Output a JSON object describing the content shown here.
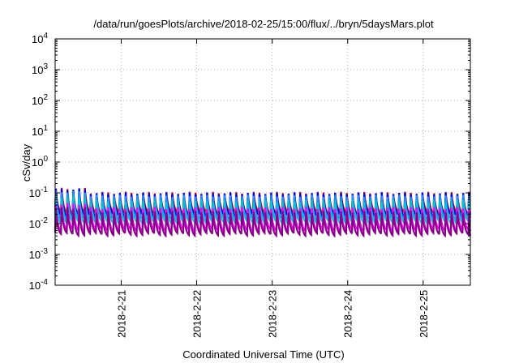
{
  "chart_data": {
    "type": "line",
    "title": "/data/run/goesPlots/archive/2018-02-25/15:00/flux/../bryn/5daysMars.plot",
    "xlabel": "Coordinated Universal Time (UTC)",
    "ylabel": "cSv/day",
    "yscale": "log",
    "ylim": [
      0.0001,
      10000
    ],
    "y_ticks": [
      {
        "base": "10",
        "exp": "-4",
        "value": 0.0001
      },
      {
        "base": "10",
        "exp": "-3",
        "value": 0.001
      },
      {
        "base": "10",
        "exp": "-2",
        "value": 0.01
      },
      {
        "base": "10",
        "exp": "-1",
        "value": 0.1
      },
      {
        "base": "10",
        "exp": "0",
        "value": 1
      },
      {
        "base": "10",
        "exp": "1",
        "value": 10
      },
      {
        "base": "10",
        "exp": "2",
        "value": 100
      },
      {
        "base": "10",
        "exp": "3",
        "value": 1000
      },
      {
        "base": "10",
        "exp": "4",
        "value": 10000
      }
    ],
    "xlim": [
      "2018-02-20T03:00",
      "2018-02-25T15:00"
    ],
    "x_ticks": [
      {
        "label": "2018-2-21",
        "value": "2018-02-21T00:00"
      },
      {
        "label": "2018-2-22",
        "value": "2018-02-22T00:00"
      },
      {
        "label": "2018-2-23",
        "value": "2018-02-23T00:00"
      },
      {
        "label": "2018-2-24",
        "value": "2018-02-24T00:00"
      },
      {
        "label": "2018-2-25",
        "value": "2018-02-25T00:00"
      }
    ],
    "grid": true,
    "legend": "none",
    "sawtooth_period_hours": 1.85,
    "series": [
      {
        "color": "#cc0000",
        "peak": 0.1,
        "trough": 0.022
      },
      {
        "color": "#0000ff",
        "peak": 0.095,
        "trough": 0.018
      },
      {
        "color": "#1e90ff",
        "peak": 0.08,
        "trough": 0.014
      },
      {
        "color": "#00c8c8",
        "peak": 0.055,
        "trough": 0.011
      },
      {
        "color": "#ff00ff",
        "peak": 0.032,
        "trough": 0.006
      },
      {
        "color": "#8b008b",
        "peak": 0.024,
        "trough": 0.0045
      }
    ]
  }
}
